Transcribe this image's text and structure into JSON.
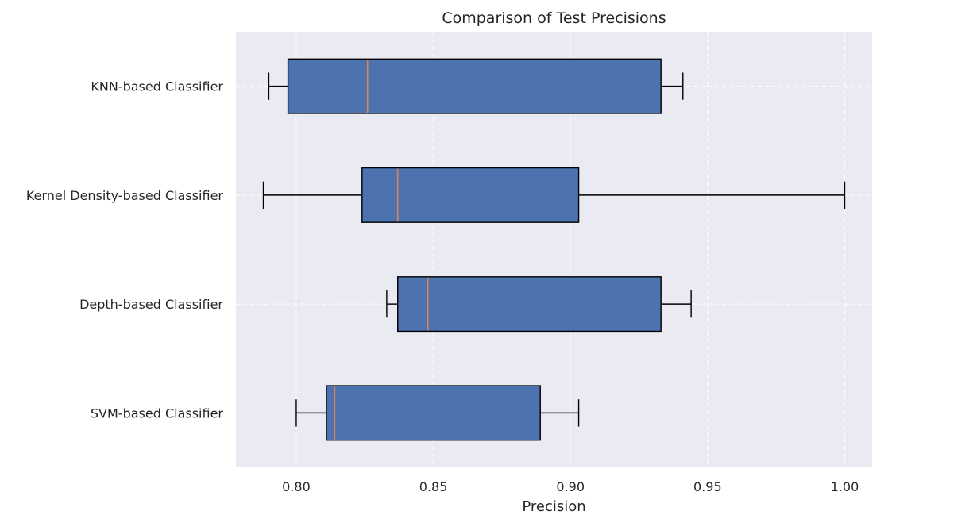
{
  "chart_data": {
    "type": "boxplot",
    "orientation": "horizontal",
    "title": "Comparison of Test Precisions",
    "xlabel": "Precision",
    "ylabel": "",
    "xlim": [
      0.778,
      1.01
    ],
    "xticks": [
      0.8,
      0.85,
      0.9,
      0.95,
      1.0
    ],
    "xtick_labels": [
      "0.80",
      "0.85",
      "0.90",
      "0.95",
      "1.00"
    ],
    "grid": true,
    "categories": [
      "KNN-based Classifier",
      "Kernel Density-based Classifier",
      "Depth-based Classifier",
      "SVM-based Classifier"
    ],
    "series": [
      {
        "category": "KNN-based Classifier",
        "min": 0.79,
        "q1": 0.797,
        "median": 0.826,
        "q3": 0.933,
        "max": 0.941
      },
      {
        "category": "Kernel Density-based Classifier",
        "min": 0.788,
        "q1": 0.824,
        "median": 0.837,
        "q3": 0.903,
        "max": 1.0
      },
      {
        "category": "Depth-based Classifier",
        "min": 0.833,
        "q1": 0.837,
        "median": 0.848,
        "q3": 0.933,
        "max": 0.944
      },
      {
        "category": "SVM-based Classifier",
        "min": 0.8,
        "q1": 0.811,
        "median": 0.814,
        "q3": 0.889,
        "max": 0.903
      }
    ],
    "colors": {
      "box_fill": "#4c72b0",
      "median": "#dd8452",
      "plot_background": "#eaeaf2",
      "grid": "#ffffff"
    }
  }
}
